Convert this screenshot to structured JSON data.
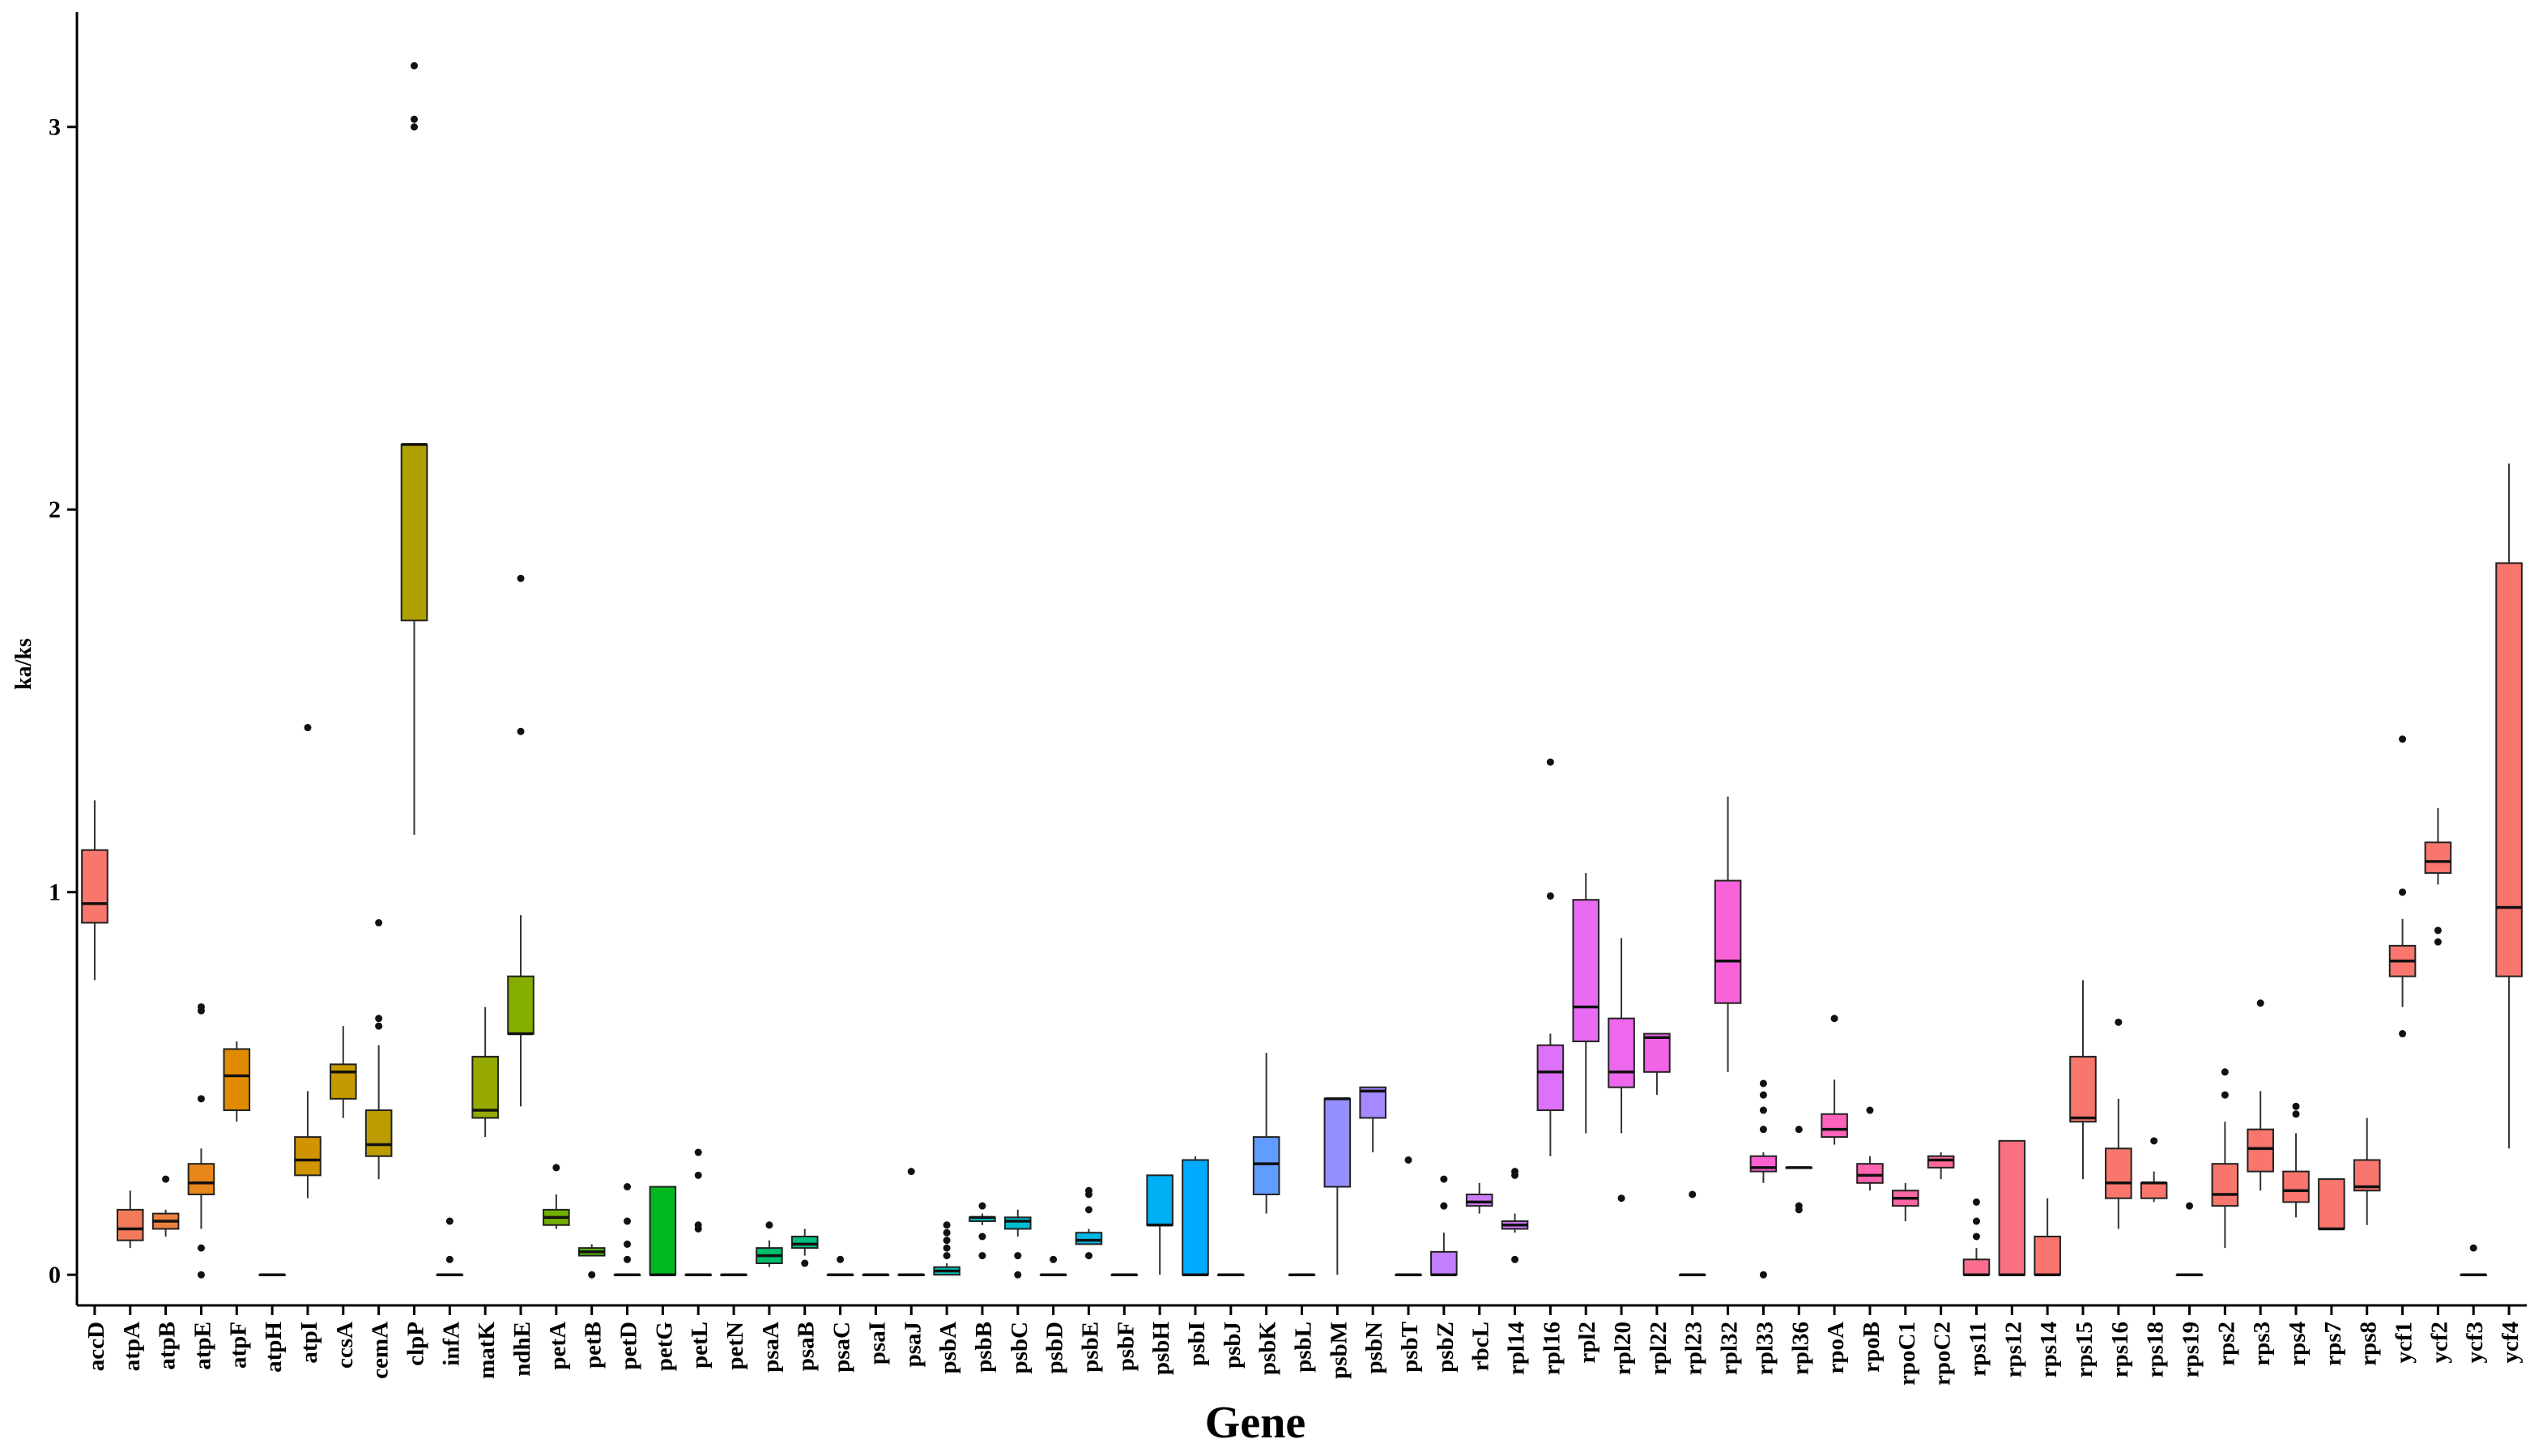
{
  "chart_data": {
    "type": "boxplot",
    "title": "",
    "xlabel": "Gene",
    "ylabel": "ka/ks",
    "ylim": [
      -0.08,
      3.3
    ],
    "yticks": [
      0,
      1,
      2,
      3
    ],
    "grid": false,
    "legend": "none",
    "categories": [
      "accD",
      "atpA",
      "atpB",
      "atpE",
      "atpF",
      "atpH",
      "atpI",
      "ccsA",
      "cemA",
      "clpP",
      "infA",
      "matK",
      "ndhE",
      "petA",
      "petB",
      "petD",
      "petG",
      "petL",
      "petN",
      "psaA",
      "psaB",
      "psaC",
      "psaI",
      "psaJ",
      "psbA",
      "psbB",
      "psbC",
      "psbD",
      "psbE",
      "psbF",
      "psbH",
      "psbI",
      "psbJ",
      "psbK",
      "psbL",
      "psbM",
      "psbN",
      "psbT",
      "psbZ",
      "rbcL",
      "rpl14",
      "rpl16",
      "rpl2",
      "rpl20",
      "rpl22",
      "rpl23",
      "rpl32",
      "rpl33",
      "rpl36",
      "rpoA",
      "rpoB",
      "rpoC1",
      "rpoC2",
      "rps11",
      "rps12",
      "rps14",
      "rps15",
      "rps16",
      "rps18",
      "rps19",
      "rps2",
      "rps3",
      "rps4",
      "rps7",
      "rps8",
      "ycf1",
      "ycf2",
      "ycf3",
      "ycf4"
    ],
    "colors": [
      "#F8766D",
      "#F37B59",
      "#ED8141",
      "#E7861B",
      "#E08B00",
      "#D89000",
      "#CF9400",
      "#C59900",
      "#BB9D00",
      "#B0A100",
      "#A3A500",
      "#95A900",
      "#85AD00",
      "#72B000",
      "#5BB300",
      "#39B600",
      "#00B81F",
      "#00BA42",
      "#00BC59",
      "#00BE6C",
      "#00BF7D",
      "#00C08D",
      "#00C19C",
      "#00C1AA",
      "#00C0B8",
      "#00BFC4",
      "#00BDD0",
      "#00BBDC",
      "#00B8E7",
      "#00B4F0",
      "#00B0F6",
      "#00ABFD",
      "#35A2FF",
      "#619CFF",
      "#7F96FF",
      "#9590FF",
      "#A58AFF",
      "#B385FF",
      "#C17FFF",
      "#CB7BF6",
      "#D575FE",
      "#DE71F9",
      "#E76BF3",
      "#ED68ED",
      "#F265E7",
      "#F763E0",
      "#FA62DA",
      "#FD61D1",
      "#FF61C9",
      "#FF62BC",
      "#FF64B0",
      "#FE66A4",
      "#FD6A98",
      "#FC6D8D",
      "#FA7082",
      "#F8766D",
      "#F8766D",
      "#F8766D",
      "#F8766D",
      "#F8766D",
      "#F8766D",
      "#F8766D",
      "#F8766D",
      "#F8766D",
      "#F8766D",
      "#F8766D",
      "#F8766D",
      "#F8766D",
      "#F8766D"
    ],
    "boxes": [
      {
        "gene": "accD",
        "low": 0.77,
        "q1": 0.92,
        "median": 0.97,
        "q3": 1.11,
        "high": 1.24,
        "outliers": []
      },
      {
        "gene": "atpA",
        "low": 0.07,
        "q1": 0.09,
        "median": 0.12,
        "q3": 0.17,
        "high": 0.22,
        "outliers": []
      },
      {
        "gene": "atpB",
        "low": 0.1,
        "q1": 0.12,
        "median": 0.14,
        "q3": 0.16,
        "high": 0.17,
        "outliers": [
          0.25
        ]
      },
      {
        "gene": "atpE",
        "low": 0.12,
        "q1": 0.21,
        "median": 0.24,
        "q3": 0.29,
        "high": 0.33,
        "outliers": [
          0.0,
          0.07,
          0.46,
          0.69,
          0.7
        ]
      },
      {
        "gene": "atpF",
        "low": 0.4,
        "q1": 0.43,
        "median": 0.52,
        "q3": 0.59,
        "high": 0.61,
        "outliers": []
      },
      {
        "gene": "atpH",
        "low": 0.0,
        "q1": 0.0,
        "median": 0.0,
        "q3": 0.0,
        "high": 0.0,
        "outliers": []
      },
      {
        "gene": "atpI",
        "low": 0.2,
        "q1": 0.26,
        "median": 0.3,
        "q3": 0.36,
        "high": 0.48,
        "outliers": [
          1.43
        ]
      },
      {
        "gene": "ccsA",
        "low": 0.41,
        "q1": 0.46,
        "median": 0.53,
        "q3": 0.55,
        "high": 0.65,
        "outliers": []
      },
      {
        "gene": "cemA",
        "low": 0.25,
        "q1": 0.31,
        "median": 0.34,
        "q3": 0.43,
        "high": 0.6,
        "outliers": [
          0.65,
          0.67,
          0.92
        ]
      },
      {
        "gene": "clpP",
        "low": 1.15,
        "q1": 1.71,
        "median": 2.17,
        "q3": 2.17,
        "high": 2.17,
        "outliers": [
          3.0,
          3.02,
          3.16
        ]
      },
      {
        "gene": "infA",
        "low": 0.0,
        "q1": 0.0,
        "median": 0.0,
        "q3": 0.0,
        "high": 0.0,
        "outliers": [
          0.04,
          0.14
        ]
      },
      {
        "gene": "matK",
        "low": 0.36,
        "q1": 0.41,
        "median": 0.43,
        "q3": 0.57,
        "high": 0.7,
        "outliers": []
      },
      {
        "gene": "ndhE",
        "low": 0.44,
        "q1": 0.63,
        "median": 0.63,
        "q3": 0.78,
        "high": 0.94,
        "outliers": [
          1.42,
          1.82
        ]
      },
      {
        "gene": "petA",
        "low": 0.12,
        "q1": 0.13,
        "median": 0.15,
        "q3": 0.17,
        "high": 0.21,
        "outliers": [
          0.28
        ]
      },
      {
        "gene": "petB",
        "low": 0.05,
        "q1": 0.05,
        "median": 0.06,
        "q3": 0.07,
        "high": 0.08,
        "outliers": [
          0.0
        ]
      },
      {
        "gene": "petD",
        "low": 0.0,
        "q1": 0.0,
        "median": 0.0,
        "q3": 0.0,
        "high": 0.0,
        "outliers": [
          0.04,
          0.08,
          0.14,
          0.23
        ]
      },
      {
        "gene": "petG",
        "low": 0.0,
        "q1": 0.0,
        "median": 0.0,
        "q3": 0.23,
        "high": 0.23,
        "outliers": []
      },
      {
        "gene": "petL",
        "low": 0.0,
        "q1": 0.0,
        "median": 0.0,
        "q3": 0.0,
        "high": 0.0,
        "outliers": [
          0.12,
          0.13,
          0.26,
          0.32
        ]
      },
      {
        "gene": "petN",
        "low": 0.0,
        "q1": 0.0,
        "median": 0.0,
        "q3": 0.0,
        "high": 0.0,
        "outliers": []
      },
      {
        "gene": "psaA",
        "low": 0.02,
        "q1": 0.03,
        "median": 0.05,
        "q3": 0.07,
        "high": 0.09,
        "outliers": [
          0.13
        ]
      },
      {
        "gene": "psaB",
        "low": 0.05,
        "q1": 0.07,
        "median": 0.08,
        "q3": 0.1,
        "high": 0.12,
        "outliers": [
          0.03
        ]
      },
      {
        "gene": "psaC",
        "low": 0.0,
        "q1": 0.0,
        "median": 0.0,
        "q3": 0.0,
        "high": 0.0,
        "outliers": [
          0.04
        ]
      },
      {
        "gene": "psaI",
        "low": 0.0,
        "q1": 0.0,
        "median": 0.0,
        "q3": 0.0,
        "high": 0.0,
        "outliers": []
      },
      {
        "gene": "psaJ",
        "low": 0.0,
        "q1": 0.0,
        "median": 0.0,
        "q3": 0.0,
        "high": 0.0,
        "outliers": [
          0.27
        ]
      },
      {
        "gene": "psbA",
        "low": 0.0,
        "q1": 0.0,
        "median": 0.01,
        "q3": 0.02,
        "high": 0.03,
        "outliers": [
          0.05,
          0.07,
          0.09,
          0.11,
          0.13
        ]
      },
      {
        "gene": "psbB",
        "low": 0.13,
        "q1": 0.14,
        "median": 0.15,
        "q3": 0.15,
        "high": 0.16,
        "outliers": [
          0.05,
          0.1,
          0.18
        ]
      },
      {
        "gene": "psbC",
        "low": 0.1,
        "q1": 0.12,
        "median": 0.14,
        "q3": 0.15,
        "high": 0.17,
        "outliers": [
          0.0,
          0.05
        ]
      },
      {
        "gene": "psbD",
        "low": 0.0,
        "q1": 0.0,
        "median": 0.0,
        "q3": 0.0,
        "high": 0.0,
        "outliers": [
          0.04
        ]
      },
      {
        "gene": "psbE",
        "low": 0.08,
        "q1": 0.08,
        "median": 0.09,
        "q3": 0.11,
        "high": 0.12,
        "outliers": [
          0.05,
          0.17,
          0.21,
          0.22
        ]
      },
      {
        "gene": "psbF",
        "low": 0.0,
        "q1": 0.0,
        "median": 0.0,
        "q3": 0.0,
        "high": 0.0,
        "outliers": []
      },
      {
        "gene": "psbH",
        "low": 0.0,
        "q1": 0.13,
        "median": 0.13,
        "q3": 0.26,
        "high": 0.26,
        "outliers": []
      },
      {
        "gene": "psbI",
        "low": 0.0,
        "q1": 0.0,
        "median": 0.0,
        "q3": 0.3,
        "high": 0.31,
        "outliers": []
      },
      {
        "gene": "psbJ",
        "low": 0.0,
        "q1": 0.0,
        "median": 0.0,
        "q3": 0.0,
        "high": 0.0,
        "outliers": []
      },
      {
        "gene": "psbK",
        "low": 0.16,
        "q1": 0.21,
        "median": 0.29,
        "q3": 0.36,
        "high": 0.58,
        "outliers": []
      },
      {
        "gene": "psbL",
        "low": 0.0,
        "q1": 0.0,
        "median": 0.0,
        "q3": 0.0,
        "high": 0.0,
        "outliers": []
      },
      {
        "gene": "psbM",
        "low": 0.0,
        "q1": 0.23,
        "median": 0.46,
        "q3": 0.46,
        "high": 0.46,
        "outliers": []
      },
      {
        "gene": "psbN",
        "low": 0.32,
        "q1": 0.41,
        "median": 0.48,
        "q3": 0.49,
        "high": 0.49,
        "outliers": []
      },
      {
        "gene": "psbT",
        "low": 0.0,
        "q1": 0.0,
        "median": 0.0,
        "q3": 0.0,
        "high": 0.0,
        "outliers": [
          0.3
        ]
      },
      {
        "gene": "psbZ",
        "low": 0.0,
        "q1": 0.0,
        "median": 0.0,
        "q3": 0.06,
        "high": 0.11,
        "outliers": [
          0.18,
          0.25
        ]
      },
      {
        "gene": "rbcL",
        "low": 0.16,
        "q1": 0.18,
        "median": 0.19,
        "q3": 0.21,
        "high": 0.24,
        "outliers": []
      },
      {
        "gene": "rpl14",
        "low": 0.11,
        "q1": 0.12,
        "median": 0.13,
        "q3": 0.14,
        "high": 0.16,
        "outliers": [
          0.04,
          0.26,
          0.27
        ]
      },
      {
        "gene": "rpl16",
        "low": 0.31,
        "q1": 0.43,
        "median": 0.53,
        "q3": 0.6,
        "high": 0.63,
        "outliers": [
          0.99,
          1.34
        ]
      },
      {
        "gene": "rpl2",
        "low": 0.37,
        "q1": 0.61,
        "median": 0.7,
        "q3": 0.98,
        "high": 1.05,
        "outliers": []
      },
      {
        "gene": "rpl20",
        "low": 0.37,
        "q1": 0.49,
        "median": 0.53,
        "q3": 0.67,
        "high": 0.88,
        "outliers": [
          0.2
        ]
      },
      {
        "gene": "rpl22",
        "low": 0.47,
        "q1": 0.53,
        "median": 0.62,
        "q3": 0.63,
        "high": 0.63,
        "outliers": []
      },
      {
        "gene": "rpl23",
        "low": 0.0,
        "q1": 0.0,
        "median": 0.0,
        "q3": 0.0,
        "high": 0.0,
        "outliers": [
          0.21
        ]
      },
      {
        "gene": "rpl32",
        "low": 0.53,
        "q1": 0.71,
        "median": 0.82,
        "q3": 1.03,
        "high": 1.25,
        "outliers": []
      },
      {
        "gene": "rpl33",
        "low": 0.24,
        "q1": 0.27,
        "median": 0.28,
        "q3": 0.31,
        "high": 0.32,
        "outliers": [
          0.0,
          0.38,
          0.43,
          0.47,
          0.5
        ]
      },
      {
        "gene": "rpl36",
        "low": 0.28,
        "q1": 0.28,
        "median": 0.28,
        "q3": 0.28,
        "high": 0.28,
        "outliers": [
          0.17,
          0.18,
          0.38
        ]
      },
      {
        "gene": "rpoA",
        "low": 0.34,
        "q1": 0.36,
        "median": 0.38,
        "q3": 0.42,
        "high": 0.51,
        "outliers": [
          0.67
        ]
      },
      {
        "gene": "rpoB",
        "low": 0.22,
        "q1": 0.24,
        "median": 0.26,
        "q3": 0.29,
        "high": 0.31,
        "outliers": [
          0.43
        ]
      },
      {
        "gene": "rpoC1",
        "low": 0.14,
        "q1": 0.18,
        "median": 0.2,
        "q3": 0.22,
        "high": 0.24,
        "outliers": []
      },
      {
        "gene": "rpoC2",
        "low": 0.25,
        "q1": 0.28,
        "median": 0.3,
        "q3": 0.31,
        "high": 0.32,
        "outliers": []
      },
      {
        "gene": "rps11",
        "low": 0.0,
        "q1": 0.0,
        "median": 0.0,
        "q3": 0.04,
        "high": 0.07,
        "outliers": [
          0.1,
          0.14,
          0.19
        ]
      },
      {
        "gene": "rps12",
        "low": 0.0,
        "q1": 0.0,
        "median": 0.0,
        "q3": 0.35,
        "high": 0.35,
        "outliers": []
      },
      {
        "gene": "rps14",
        "low": 0.0,
        "q1": 0.0,
        "median": 0.0,
        "q3": 0.1,
        "high": 0.2,
        "outliers": []
      },
      {
        "gene": "rps15",
        "low": 0.25,
        "q1": 0.4,
        "median": 0.41,
        "q3": 0.57,
        "high": 0.77,
        "outliers": []
      },
      {
        "gene": "rps16",
        "low": 0.12,
        "q1": 0.2,
        "median": 0.24,
        "q3": 0.33,
        "high": 0.46,
        "outliers": [
          0.66
        ]
      },
      {
        "gene": "rps18",
        "low": 0.19,
        "q1": 0.2,
        "median": 0.24,
        "q3": 0.24,
        "high": 0.27,
        "outliers": [
          0.35
        ]
      },
      {
        "gene": "rps19",
        "low": 0.0,
        "q1": 0.0,
        "median": 0.0,
        "q3": 0.0,
        "high": 0.0,
        "outliers": [
          0.18
        ]
      },
      {
        "gene": "rps2",
        "low": 0.07,
        "q1": 0.18,
        "median": 0.21,
        "q3": 0.29,
        "high": 0.4,
        "outliers": [
          0.47,
          0.53
        ]
      },
      {
        "gene": "rps3",
        "low": 0.22,
        "q1": 0.27,
        "median": 0.33,
        "q3": 0.38,
        "high": 0.48,
        "outliers": [
          0.71
        ]
      },
      {
        "gene": "rps4",
        "low": 0.15,
        "q1": 0.19,
        "median": 0.22,
        "q3": 0.27,
        "high": 0.37,
        "outliers": [
          0.42,
          0.44
        ]
      },
      {
        "gene": "rps7",
        "low": 0.12,
        "q1": 0.12,
        "median": 0.12,
        "q3": 0.25,
        "high": 0.25,
        "outliers": []
      },
      {
        "gene": "rps8",
        "low": 0.13,
        "q1": 0.22,
        "median": 0.23,
        "q3": 0.3,
        "high": 0.41,
        "outliers": []
      },
      {
        "gene": "ycf1",
        "low": 0.7,
        "q1": 0.78,
        "median": 0.82,
        "q3": 0.86,
        "high": 0.93,
        "outliers": [
          0.63,
          1.0,
          1.4
        ]
      },
      {
        "gene": "ycf2",
        "low": 1.02,
        "q1": 1.05,
        "median": 1.08,
        "q3": 1.13,
        "high": 1.22,
        "outliers": [
          0.87,
          0.9
        ]
      },
      {
        "gene": "ycf3",
        "low": 0.0,
        "q1": 0.0,
        "median": 0.0,
        "q3": 0.0,
        "high": 0.0,
        "outliers": [
          0.07
        ]
      },
      {
        "gene": "ycf4",
        "low": 0.33,
        "q1": 0.78,
        "median": 0.96,
        "q3": 1.86,
        "high": 2.12,
        "outliers": []
      }
    ]
  }
}
